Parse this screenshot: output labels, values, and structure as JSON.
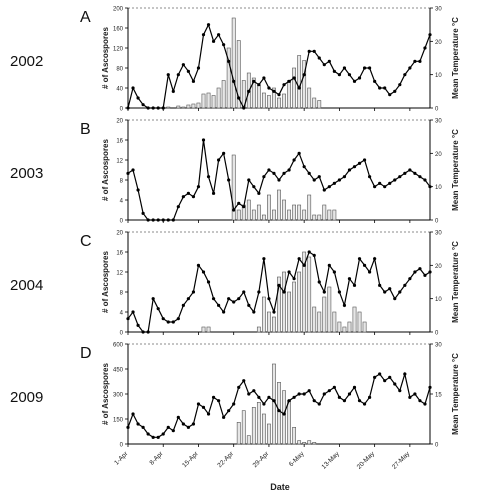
{
  "figure": {
    "x_title": "Date",
    "x_ticks": [
      "1-Apr",
      "8-Apr",
      "15-Apr",
      "22-Apr",
      "29-Apr",
      "6-May",
      "13-May",
      "20-May",
      "27-May"
    ],
    "left_axis_title": "# of Ascospores",
    "right_axis_title": "Mean Temperature °C"
  },
  "chart_data": [
    {
      "type": "bar",
      "panel_letter": "A",
      "year_label": "2002",
      "x": [
        "1-Apr",
        "2-Apr",
        "3-Apr",
        "4-Apr",
        "5-Apr",
        "6-Apr",
        "7-Apr",
        "8-Apr",
        "9-Apr",
        "10-Apr",
        "11-Apr",
        "12-Apr",
        "13-Apr",
        "14-Apr",
        "15-Apr",
        "16-Apr",
        "17-Apr",
        "18-Apr",
        "19-Apr",
        "20-Apr",
        "21-Apr",
        "22-Apr",
        "23-Apr",
        "24-Apr",
        "25-Apr",
        "26-Apr",
        "27-Apr",
        "28-Apr",
        "29-Apr",
        "30-Apr",
        "1-May",
        "2-May",
        "3-May",
        "4-May",
        "5-May",
        "6-May",
        "7-May",
        "8-May",
        "9-May",
        "10-May",
        "11-May",
        "12-May",
        "13-May",
        "14-May",
        "15-May",
        "16-May",
        "17-May",
        "18-May",
        "19-May",
        "20-May",
        "21-May",
        "22-May",
        "23-May",
        "24-May",
        "25-May",
        "26-May",
        "27-May",
        "28-May",
        "29-May",
        "30-May",
        "31-May"
      ],
      "y_left_ticks": [
        "0",
        "40",
        "80",
        "120",
        "160",
        "200"
      ],
      "y_right_ticks": [
        "0",
        "10",
        "20",
        "30"
      ],
      "ylim_left": [
        0,
        200
      ],
      "ylim_right": [
        0,
        30
      ],
      "series": [
        {
          "axis": "left",
          "style": "bars",
          "values": [
            0,
            0,
            0,
            0,
            0,
            0,
            0,
            0,
            2,
            0,
            4,
            2,
            6,
            8,
            10,
            28,
            30,
            25,
            40,
            55,
            120,
            180,
            135,
            55,
            70,
            60,
            45,
            30,
            25,
            40,
            20,
            28,
            55,
            80,
            105,
            95,
            40,
            20,
            15,
            0,
            0,
            0,
            0,
            0,
            0,
            0,
            0,
            0,
            0,
            0,
            0,
            0,
            0,
            0,
            0,
            0,
            0,
            0,
            0,
            0,
            0
          ]
        },
        {
          "axis": "right",
          "style": "line",
          "values": [
            0,
            6,
            3,
            1,
            0,
            0,
            0,
            0,
            10,
            5,
            10,
            13,
            11,
            8,
            12,
            22,
            25,
            20,
            22,
            19,
            14,
            8,
            3,
            0,
            5,
            8,
            7,
            9,
            6,
            5,
            4,
            7,
            8,
            9,
            6,
            10,
            17,
            17,
            15,
            13,
            14,
            11,
            10,
            12,
            10,
            8,
            9,
            12,
            12,
            8,
            6,
            6,
            4,
            5,
            7,
            10,
            12,
            14,
            14,
            18,
            22
          ]
        }
      ]
    },
    {
      "type": "bar",
      "panel_letter": "B",
      "year_label": "2003",
      "x": [
        "1-Apr",
        "2-Apr",
        "3-Apr",
        "4-Apr",
        "5-Apr",
        "6-Apr",
        "7-Apr",
        "8-Apr",
        "9-Apr",
        "10-Apr",
        "11-Apr",
        "12-Apr",
        "13-Apr",
        "14-Apr",
        "15-Apr",
        "16-Apr",
        "17-Apr",
        "18-Apr",
        "19-Apr",
        "20-Apr",
        "21-Apr",
        "22-Apr",
        "23-Apr",
        "24-Apr",
        "25-Apr",
        "26-Apr",
        "27-Apr",
        "28-Apr",
        "29-Apr",
        "30-Apr",
        "1-May",
        "2-May",
        "3-May",
        "4-May",
        "5-May",
        "6-May",
        "7-May",
        "8-May",
        "9-May",
        "10-May",
        "11-May",
        "12-May",
        "13-May",
        "14-May",
        "15-May",
        "16-May",
        "17-May",
        "18-May",
        "19-May",
        "20-May",
        "21-May",
        "22-May",
        "23-May",
        "24-May",
        "25-May",
        "26-May",
        "27-May",
        "28-May",
        "29-May",
        "30-May",
        "31-May"
      ],
      "y_left_ticks": [
        "0",
        "4",
        "8",
        "12",
        "16",
        "20"
      ],
      "y_right_ticks": [
        "0",
        "10",
        "20",
        "30"
      ],
      "ylim_left": [
        0,
        20
      ],
      "ylim_right": [
        0,
        30
      ],
      "series": [
        {
          "axis": "left",
          "style": "bars",
          "values": [
            0,
            0,
            0,
            0,
            0,
            0,
            0,
            0,
            0,
            0,
            0,
            0,
            0,
            0,
            0,
            0,
            0,
            0,
            0,
            0,
            0,
            13,
            2,
            3,
            4,
            2,
            3,
            1,
            5,
            2,
            6,
            4,
            2,
            3,
            3,
            2,
            5,
            1,
            1,
            3,
            2,
            2,
            0,
            0,
            0,
            0,
            0,
            0,
            0,
            0,
            0,
            0,
            0,
            0,
            0,
            0,
            0,
            0,
            0,
            0,
            0
          ]
        },
        {
          "axis": "right",
          "style": "line",
          "values": [
            14,
            15,
            9,
            2,
            0,
            0,
            0,
            0,
            0,
            0,
            4,
            7,
            8,
            7,
            10,
            24,
            13,
            8,
            18,
            20,
            12,
            3,
            5,
            4,
            12,
            10,
            8,
            13,
            15,
            14,
            12,
            14,
            15,
            18,
            20,
            16,
            14,
            12,
            13,
            9,
            10,
            11,
            12,
            13,
            15,
            16,
            17,
            18,
            13,
            10,
            11,
            10,
            11,
            12,
            13,
            14,
            15,
            14,
            13,
            12,
            10
          ]
        }
      ]
    },
    {
      "type": "bar",
      "panel_letter": "C",
      "year_label": "2004",
      "x": [
        "1-Apr",
        "2-Apr",
        "3-Apr",
        "4-Apr",
        "5-Apr",
        "6-Apr",
        "7-Apr",
        "8-Apr",
        "9-Apr",
        "10-Apr",
        "11-Apr",
        "12-Apr",
        "13-Apr",
        "14-Apr",
        "15-Apr",
        "16-Apr",
        "17-Apr",
        "18-Apr",
        "19-Apr",
        "20-Apr",
        "21-Apr",
        "22-Apr",
        "23-Apr",
        "24-Apr",
        "25-Apr",
        "26-Apr",
        "27-Apr",
        "28-Apr",
        "29-Apr",
        "30-Apr",
        "1-May",
        "2-May",
        "3-May",
        "4-May",
        "5-May",
        "6-May",
        "7-May",
        "8-May",
        "9-May",
        "10-May",
        "11-May",
        "12-May",
        "13-May",
        "14-May",
        "15-May",
        "16-May",
        "17-May",
        "18-May",
        "19-May",
        "20-May",
        "21-May",
        "22-May",
        "23-May",
        "24-May",
        "25-May",
        "26-May",
        "27-May",
        "28-May",
        "29-May",
        "30-May",
        "31-May"
      ],
      "y_left_ticks": [
        "0",
        "4",
        "8",
        "12",
        "16",
        "20"
      ],
      "y_right_ticks": [
        "0",
        "10",
        "20",
        "30"
      ],
      "ylim_left": [
        0,
        20
      ],
      "ylim_right": [
        0,
        30
      ],
      "series": [
        {
          "axis": "left",
          "style": "bars",
          "values": [
            0,
            0,
            0,
            0,
            0,
            0,
            0,
            0,
            0,
            0,
            0,
            0,
            0,
            0,
            0,
            1,
            1,
            0,
            0,
            0,
            0,
            0,
            0,
            0,
            0,
            0,
            1,
            7,
            4,
            3,
            11,
            12,
            8,
            10,
            12,
            16,
            15,
            5,
            4,
            7,
            9,
            4,
            2,
            1,
            2,
            5,
            4,
            2,
            0,
            0,
            0,
            0,
            0,
            0,
            0,
            0,
            0,
            0,
            0,
            0,
            0
          ]
        },
        {
          "axis": "right",
          "style": "line",
          "values": [
            4,
            6,
            2,
            0,
            0,
            10,
            7,
            4,
            3,
            3,
            4,
            8,
            10,
            12,
            20,
            18,
            15,
            10,
            8,
            6,
            10,
            9,
            10,
            12,
            8,
            6,
            12,
            22,
            10,
            6,
            14,
            12,
            18,
            16,
            22,
            20,
            24,
            23,
            15,
            12,
            20,
            18,
            12,
            8,
            16,
            14,
            22,
            20,
            18,
            22,
            14,
            12,
            13,
            10,
            12,
            14,
            16,
            18,
            19,
            17,
            18
          ]
        }
      ]
    },
    {
      "type": "bar",
      "panel_letter": "D",
      "year_label": "2009",
      "x": [
        "1-Apr",
        "2-Apr",
        "3-Apr",
        "4-Apr",
        "5-Apr",
        "6-Apr",
        "7-Apr",
        "8-Apr",
        "9-Apr",
        "10-Apr",
        "11-Apr",
        "12-Apr",
        "13-Apr",
        "14-Apr",
        "15-Apr",
        "16-Apr",
        "17-Apr",
        "18-Apr",
        "19-Apr",
        "20-Apr",
        "21-Apr",
        "22-Apr",
        "23-Apr",
        "24-Apr",
        "25-Apr",
        "26-Apr",
        "27-Apr",
        "28-Apr",
        "29-Apr",
        "30-Apr",
        "1-May",
        "2-May",
        "3-May",
        "4-May",
        "5-May",
        "6-May",
        "7-May",
        "8-May",
        "9-May",
        "10-May",
        "11-May",
        "12-May",
        "13-May",
        "14-May",
        "15-May",
        "16-May",
        "17-May",
        "18-May",
        "19-May",
        "20-May",
        "21-May",
        "22-May",
        "23-May",
        "24-May",
        "25-May",
        "26-May",
        "27-May",
        "28-May",
        "29-May",
        "30-May",
        "31-May"
      ],
      "y_left_ticks": [
        "0",
        "150",
        "300",
        "450",
        "600"
      ],
      "y_right_ticks": [
        "0",
        "15",
        "30"
      ],
      "ylim_left": [
        0,
        600
      ],
      "ylim_right": [
        0,
        30
      ],
      "series": [
        {
          "axis": "left",
          "style": "bars",
          "values": [
            0,
            0,
            0,
            0,
            0,
            0,
            0,
            0,
            0,
            0,
            0,
            0,
            0,
            0,
            0,
            0,
            0,
            0,
            0,
            0,
            0,
            0,
            130,
            200,
            50,
            220,
            250,
            180,
            120,
            480,
            370,
            320,
            260,
            100,
            20,
            10,
            20,
            10,
            0,
            0,
            0,
            0,
            0,
            0,
            0,
            0,
            0,
            0,
            0,
            0,
            0,
            0,
            0,
            0,
            0,
            0,
            0,
            0,
            0,
            0,
            0
          ]
        },
        {
          "axis": "right",
          "style": "line",
          "values": [
            5,
            9,
            6,
            5,
            3,
            2,
            2,
            3,
            5,
            4,
            8,
            6,
            5,
            6,
            12,
            11,
            9,
            14,
            13,
            8,
            10,
            12,
            17,
            19,
            15,
            16,
            14,
            12,
            14,
            13,
            10,
            9,
            13,
            14,
            15,
            15,
            16,
            13,
            12,
            15,
            16,
            17,
            14,
            13,
            15,
            17,
            13,
            12,
            14,
            20,
            21,
            19,
            20,
            18,
            16,
            21,
            14,
            15,
            13,
            12,
            17
          ]
        }
      ]
    }
  ]
}
